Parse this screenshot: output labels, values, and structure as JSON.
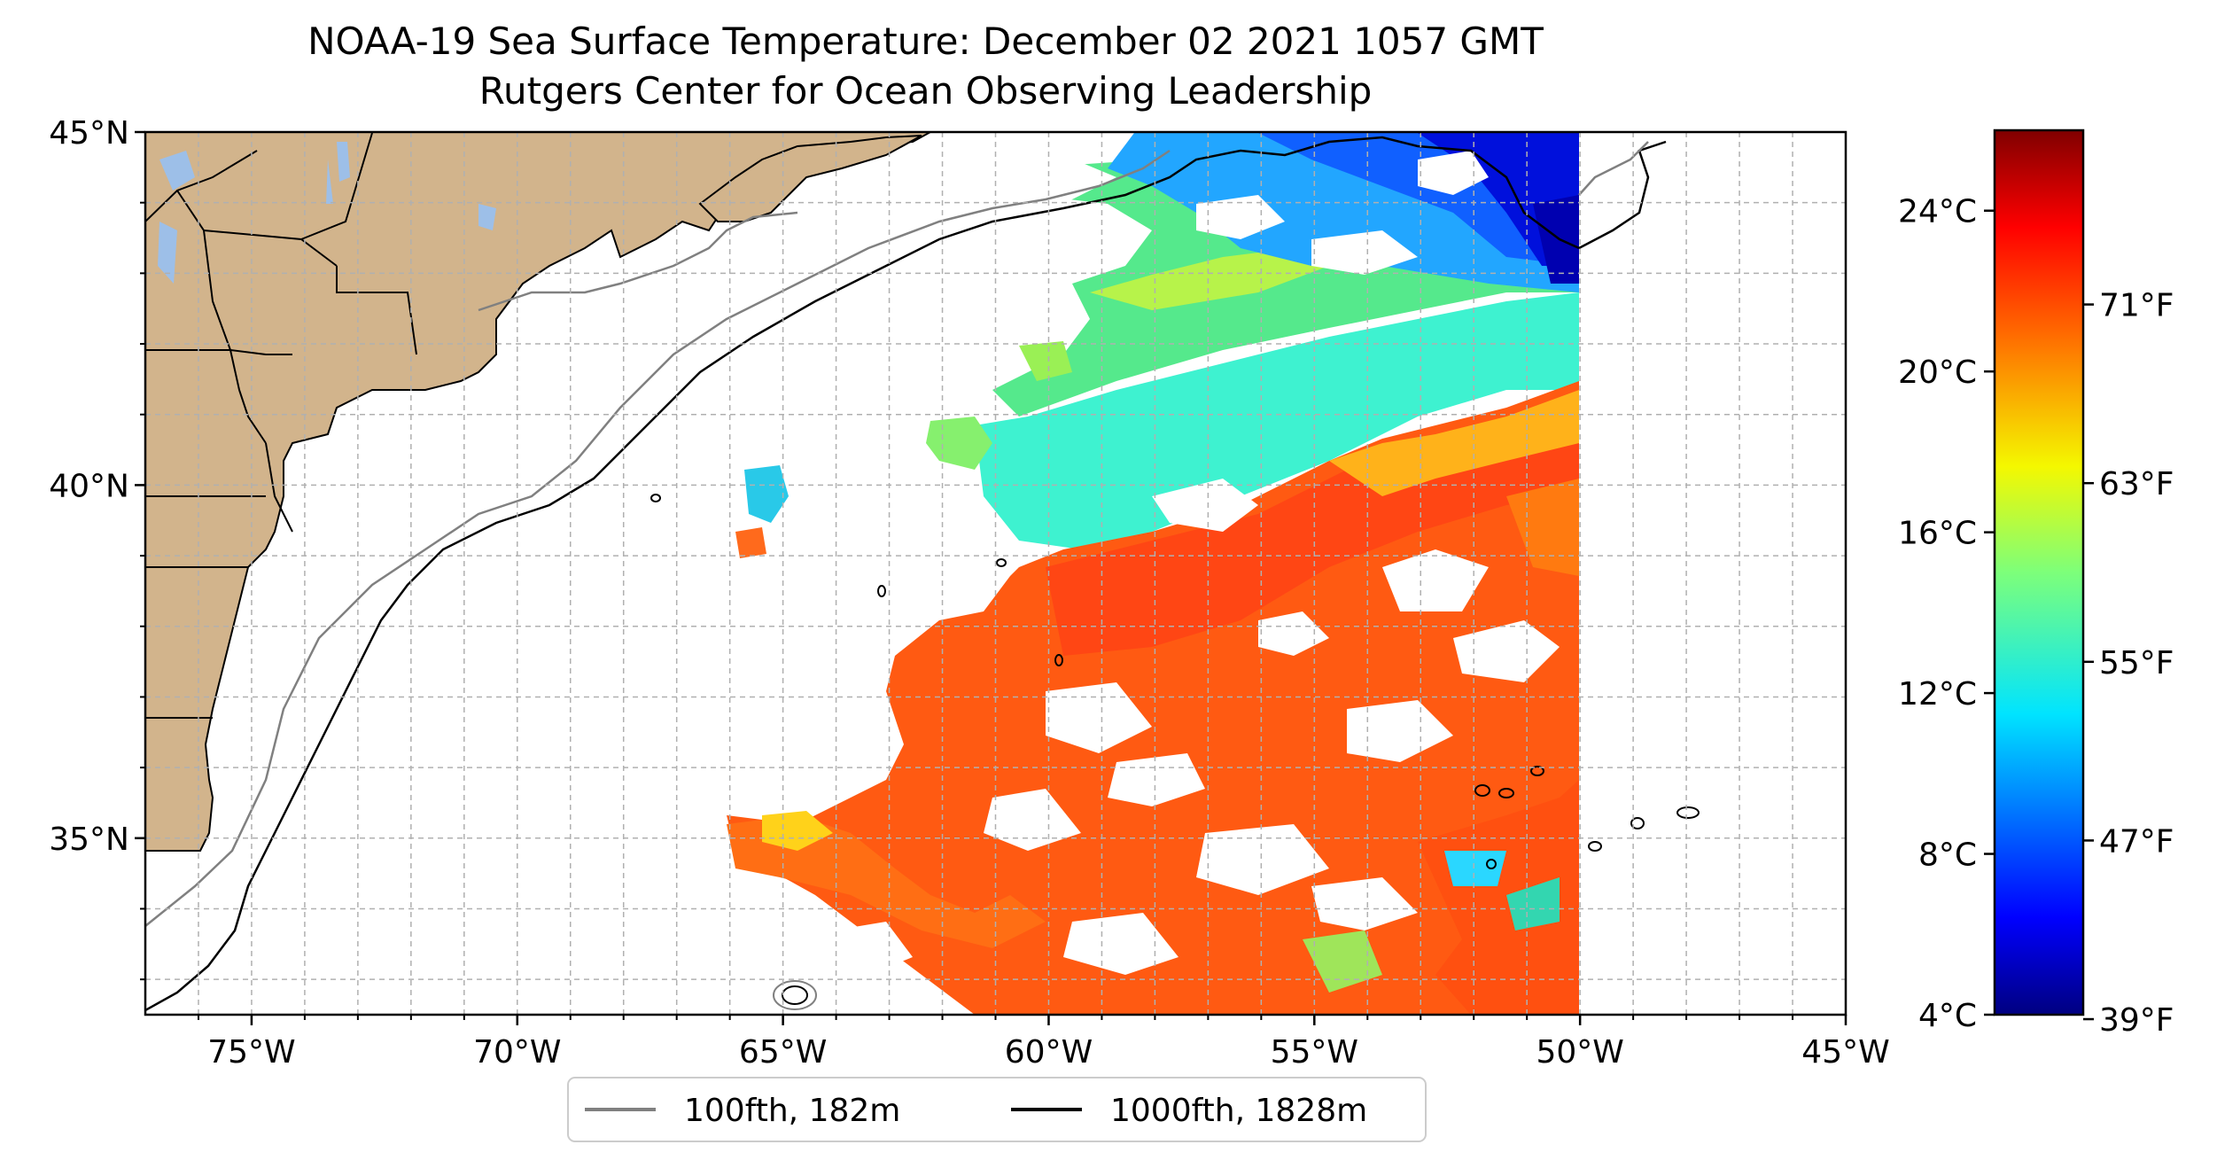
{
  "title": {
    "line1": "NOAA-19 Sea Surface Temperature: December 02 2021 1057 GMT",
    "line2": "Rutgers Center for Ocean Observing Leadership"
  },
  "map": {
    "lon_range": [
      -77,
      -45
    ],
    "lat_range": [
      32.5,
      45
    ],
    "lon_ticks": [
      {
        "value": -75,
        "label": "75°W"
      },
      {
        "value": -70,
        "label": "70°W"
      },
      {
        "value": -65,
        "label": "65°W"
      },
      {
        "value": -60,
        "label": "60°W"
      },
      {
        "value": -55,
        "label": "55°W"
      },
      {
        "value": -50,
        "label": "50°W"
      },
      {
        "value": -45,
        "label": "45°W"
      }
    ],
    "lat_ticks": [
      {
        "value": 45,
        "label": "45°N"
      },
      {
        "value": 40,
        "label": "40°N"
      },
      {
        "value": 35,
        "label": "35°N"
      }
    ],
    "gridlines": true,
    "land_color": "#d2b48c",
    "lake_color": "#9dbfe8",
    "data_lon_max": -50
  },
  "colorbar": {
    "colormap": "jet",
    "range_c": [
      4,
      26
    ],
    "celsius_ticks": [
      {
        "value": 24,
        "label": "24°C"
      },
      {
        "value": 20,
        "label": "20°C"
      },
      {
        "value": 16,
        "label": "16°C"
      },
      {
        "value": 12,
        "label": "12°C"
      },
      {
        "value": 8,
        "label": "8°C"
      },
      {
        "value": 4,
        "label": "4°C"
      }
    ],
    "fahrenheit_ticks": [
      {
        "value": 71,
        "label": "71°F"
      },
      {
        "value": 63,
        "label": "63°F"
      },
      {
        "value": 55,
        "label": "55°F"
      },
      {
        "value": 47,
        "label": "47°F"
      },
      {
        "value": 39,
        "label": "39°F"
      }
    ]
  },
  "legend": {
    "items": [
      {
        "label": "100fth, 182m",
        "color": "#808080"
      },
      {
        "label": "1000fth, 1828m",
        "color": "#000000"
      }
    ],
    "placement": "bottom-center"
  }
}
